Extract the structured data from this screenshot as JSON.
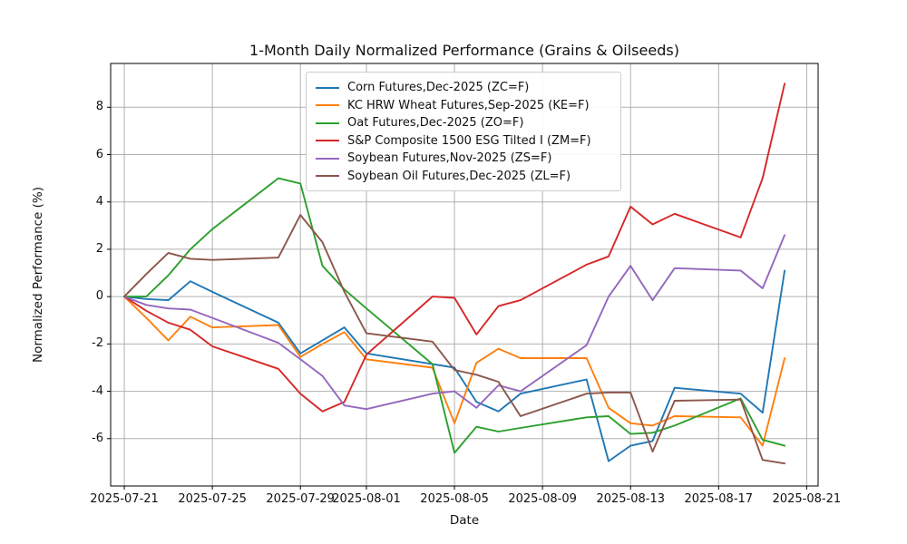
{
  "chart_data": {
    "type": "line",
    "title": "1-Month Daily Normalized Performance (Grains & Oilseeds)",
    "xlabel": "Date",
    "ylabel": "Normalized Performance (%)",
    "grid": true,
    "grid_color": "#b0b0b0",
    "background": "#ffffff",
    "legend_position": "upper center-left inside axes",
    "ylim": [
      -8.0,
      9.85
    ],
    "xlim_days": [
      -0.62,
      31.52
    ],
    "yticks": [
      8,
      6,
      4,
      2,
      0,
      -2,
      -4,
      -6
    ],
    "xticks": [
      {
        "label": "2025-07-21",
        "offset": 0
      },
      {
        "label": "2025-07-25",
        "offset": 4
      },
      {
        "label": "2025-07-29",
        "offset": 8
      },
      {
        "label": "2025-08-01",
        "offset": 11
      },
      {
        "label": "2025-08-05",
        "offset": 15
      },
      {
        "label": "2025-08-09",
        "offset": 19
      },
      {
        "label": "2025-08-13",
        "offset": 23
      },
      {
        "label": "2025-08-17",
        "offset": 27
      },
      {
        "label": "2025-08-21",
        "offset": 31
      }
    ],
    "x_dates": [
      "2025-07-21",
      "2025-07-22",
      "2025-07-23",
      "2025-07-24",
      "2025-07-25",
      "2025-07-28",
      "2025-07-29",
      "2025-07-30",
      "2025-07-31",
      "2025-08-01",
      "2025-08-04",
      "2025-08-05",
      "2025-08-06",
      "2025-08-07",
      "2025-08-08",
      "2025-08-11",
      "2025-08-12",
      "2025-08-13",
      "2025-08-14",
      "2025-08-15",
      "2025-08-18",
      "2025-08-19",
      "2025-08-20"
    ],
    "x_offsets": [
      0,
      1,
      2,
      3,
      4,
      7,
      8,
      9,
      10,
      11,
      14,
      15,
      16,
      17,
      18,
      21,
      22,
      23,
      24,
      25,
      28,
      29,
      30
    ],
    "series": [
      {
        "name": "Corn Futures,Dec-2025 (ZC=F)",
        "color": "#1f77b4",
        "values": [
          0,
          -0.1,
          -0.15,
          0.65,
          0.2,
          -1.1,
          -2.4,
          -1.85,
          -1.3,
          -2.4,
          -2.85,
          -3.0,
          -4.45,
          -4.85,
          -4.1,
          -3.5,
          -6.95,
          -6.3,
          -6.1,
          -3.85,
          -4.1,
          -4.9,
          1.1
        ]
      },
      {
        "name": "KC HRW Wheat Futures,Sep-2025 (KE=F)",
        "color": "#ff7f0e",
        "values": [
          0,
          -0.9,
          -1.85,
          -0.85,
          -1.3,
          -1.2,
          -2.55,
          -2.0,
          -1.5,
          -2.65,
          -3.0,
          -5.35,
          -2.8,
          -2.2,
          -2.6,
          -2.6,
          -4.7,
          -5.35,
          -5.45,
          -5.05,
          -5.1,
          -6.3,
          -2.6
        ]
      },
      {
        "name": "Oat Futures,Dec-2025 (ZO=F)",
        "color": "#2ca02c",
        "values": [
          0,
          0.0,
          0.9,
          2.0,
          2.85,
          5.0,
          4.78,
          1.3,
          0.3,
          -0.5,
          -2.85,
          -6.6,
          -5.5,
          -5.7,
          -5.55,
          -5.1,
          -5.05,
          -5.8,
          -5.75,
          -5.45,
          -4.3,
          -6.05,
          -6.3
        ]
      },
      {
        "name": "S&P Composite 1500 ESG Tilted I (ZM=F)",
        "color": "#d62728",
        "values": [
          0,
          -0.6,
          -1.1,
          -1.4,
          -2.1,
          -3.05,
          -4.1,
          -4.85,
          -4.45,
          -2.45,
          0.0,
          -0.05,
          -1.6,
          -0.4,
          -0.15,
          1.35,
          1.7,
          3.8,
          3.05,
          3.5,
          2.5,
          5.0,
          9.0
        ]
      },
      {
        "name": "Soybean Futures,Nov-2025 (ZS=F)",
        "color": "#9467bd",
        "values": [
          0,
          -0.35,
          -0.5,
          -0.55,
          -0.9,
          -1.95,
          -2.65,
          -3.35,
          -4.6,
          -4.75,
          -4.1,
          -4.0,
          -4.7,
          -3.75,
          -4.0,
          -2.05,
          0.0,
          1.3,
          -0.15,
          1.2,
          1.1,
          0.35,
          2.6
        ]
      },
      {
        "name": "Soybean Oil Futures,Dec-2025 (ZL=F)",
        "color": "#8c564b",
        "values": [
          0,
          0.95,
          1.85,
          1.6,
          1.55,
          1.65,
          3.45,
          2.3,
          0.2,
          -1.55,
          -1.9,
          -3.1,
          -3.3,
          -3.6,
          -5.05,
          -4.1,
          -4.05,
          -4.05,
          -6.55,
          -4.4,
          -4.35,
          -6.9,
          -7.05
        ]
      }
    ]
  }
}
